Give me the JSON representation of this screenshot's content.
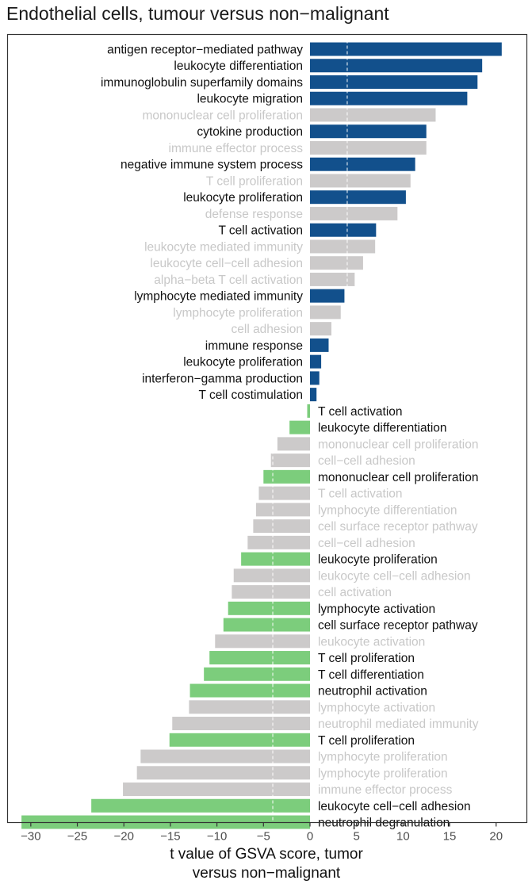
{
  "chart_data": {
    "type": "bar",
    "orientation": "horizontal",
    "title": "Endothelial cells, tumour versus non−malignant",
    "xlabel": [
      "t value of GSVA score, tumor",
      "versus non−malignant"
    ],
    "xlim": [
      -32.5,
      23.3
    ],
    "xticks": [
      -30,
      -25,
      -20,
      -15,
      -10,
      -5,
      0,
      5,
      10,
      15,
      20
    ],
    "xtick_labels": [
      "−30",
      "−25",
      "−20",
      "−15",
      "−10",
      "−5",
      "0",
      "5",
      "10",
      "15",
      "20"
    ],
    "reference_lines": [
      4,
      -4
    ],
    "colors": {
      "up": "#12508c",
      "down": "#7ccd7c",
      "grey_bar": "#cccaca",
      "grey_text": "#c8c8c8",
      "text": "#111111"
    },
    "bars": [
      {
        "label": "antigen receptor−mediated pathway",
        "value": 20.6,
        "group": "up"
      },
      {
        "label": "leukocyte differentiation",
        "value": 18.5,
        "group": "up"
      },
      {
        "label": "immunoglobulin superfamily domains",
        "value": 18.0,
        "group": "up"
      },
      {
        "label": "leukocyte migration",
        "value": 16.9,
        "group": "up"
      },
      {
        "label": "mononuclear cell proliferation",
        "value": 13.5,
        "group": "grey"
      },
      {
        "label": "cytokine production",
        "value": 12.5,
        "group": "up"
      },
      {
        "label": "immune effector process",
        "value": 12.5,
        "group": "grey"
      },
      {
        "label": "negative immune system process",
        "value": 11.3,
        "group": "up"
      },
      {
        "label": "T cell proliferation",
        "value": 10.8,
        "group": "grey"
      },
      {
        "label": "leukocyte proliferation",
        "value": 10.3,
        "group": "up"
      },
      {
        "label": "defense response",
        "value": 9.4,
        "group": "grey"
      },
      {
        "label": "T cell activation",
        "value": 7.1,
        "group": "up"
      },
      {
        "label": "leukocyte mediated immunity",
        "value": 7.0,
        "group": "grey"
      },
      {
        "label": "leukocyte cell−cell adhesion",
        "value": 5.7,
        "group": "grey"
      },
      {
        "label": "alpha−beta T cell activation",
        "value": 4.8,
        "group": "grey"
      },
      {
        "label": "lymphocyte mediated immunity",
        "value": 3.7,
        "group": "up"
      },
      {
        "label": "lymphocyte proliferation",
        "value": 3.3,
        "group": "grey"
      },
      {
        "label": "cell adhesion",
        "value": 2.3,
        "group": "grey"
      },
      {
        "label": "immune response",
        "value": 2.0,
        "group": "up"
      },
      {
        "label": "leukocyte proliferation",
        "value": 1.2,
        "group": "up"
      },
      {
        "label": "interferon−gamma production",
        "value": 1.0,
        "group": "up"
      },
      {
        "label": "T cell costimulation",
        "value": 0.7,
        "group": "up"
      },
      {
        "label": "T cell activation",
        "value": -0.3,
        "group": "down"
      },
      {
        "label": "leukocyte differentiation",
        "value": -2.2,
        "group": "down"
      },
      {
        "label": "mononuclear cell proliferation",
        "value": -3.5,
        "group": "grey"
      },
      {
        "label": "cell−cell adhesion",
        "value": -4.2,
        "group": "grey"
      },
      {
        "label": "mononuclear cell proliferation",
        "value": -5.0,
        "group": "down"
      },
      {
        "label": "T cell activation",
        "value": -5.5,
        "group": "grey"
      },
      {
        "label": "lymphocyte differentiation",
        "value": -5.8,
        "group": "grey"
      },
      {
        "label": "cell surface receptor pathway",
        "value": -6.1,
        "group": "grey"
      },
      {
        "label": "cell−cell adhesion",
        "value": -6.7,
        "group": "grey"
      },
      {
        "label": "leukocyte proliferation",
        "value": -7.4,
        "group": "down"
      },
      {
        "label": "leukocyte cell−cell adhesion",
        "value": -8.2,
        "group": "grey"
      },
      {
        "label": "cell activation",
        "value": -8.4,
        "group": "grey"
      },
      {
        "label": "lymphocyte activation",
        "value": -8.8,
        "group": "down"
      },
      {
        "label": "cell surface receptor pathway",
        "value": -9.3,
        "group": "down"
      },
      {
        "label": "leukocyte activation",
        "value": -10.2,
        "group": "grey"
      },
      {
        "label": "T cell proliferation",
        "value": -10.8,
        "group": "down"
      },
      {
        "label": "T cell differentiation",
        "value": -11.4,
        "group": "down"
      },
      {
        "label": "neutrophil activation",
        "value": -12.9,
        "group": "down"
      },
      {
        "label": "lymphocyte activation",
        "value": -13.0,
        "group": "grey"
      },
      {
        "label": "neutrophil mediated immunity",
        "value": -14.8,
        "group": "grey"
      },
      {
        "label": "T cell proliferation",
        "value": -15.1,
        "group": "down"
      },
      {
        "label": "lymphocyte proliferation",
        "value": -18.2,
        "group": "grey"
      },
      {
        "label": "lymphocyte proliferation",
        "value": -18.6,
        "group": "grey"
      },
      {
        "label": "immune effector process",
        "value": -20.1,
        "group": "grey"
      },
      {
        "label": "leukocyte cell−cell adhesion",
        "value": -23.5,
        "group": "down"
      },
      {
        "label": "neutrophil degranulation",
        "value": -31.0,
        "group": "down"
      }
    ]
  }
}
